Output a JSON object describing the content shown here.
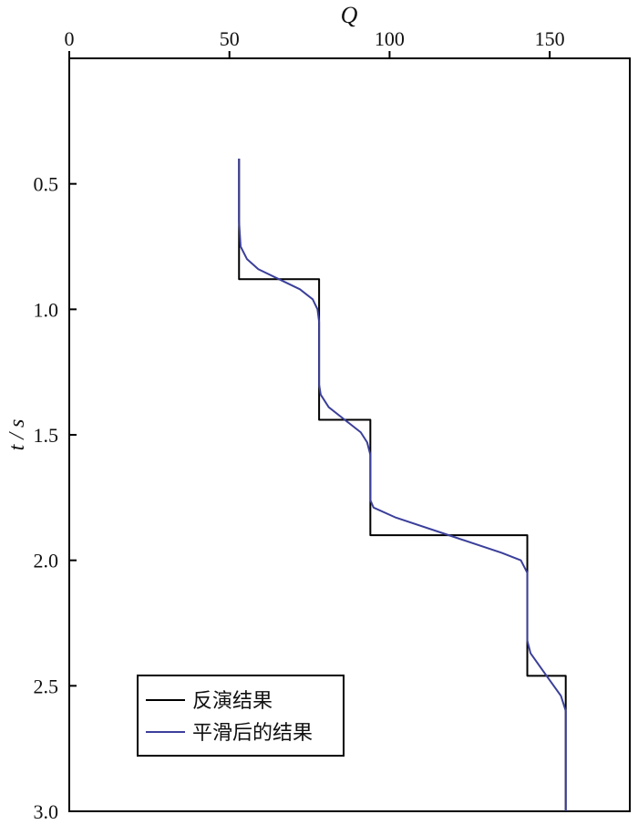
{
  "chart_data": {
    "type": "line",
    "xlabel": "Q",
    "ylabel": "t / s",
    "x_axis_position": "top",
    "y_axis_inverted": true,
    "xlim": [
      0,
      175
    ],
    "ylim": [
      0.0,
      3.0
    ],
    "x_ticks": [
      "0",
      "50",
      "100",
      "150"
    ],
    "y_ticks": [
      "0.5",
      "1.0",
      "1.5",
      "2.0",
      "2.5",
      "3.0"
    ],
    "grid": false,
    "legend_position": "bottom-left",
    "series": [
      {
        "name": "反演结果",
        "color": "#000000",
        "points": [
          [
            53,
            0.4
          ],
          [
            53,
            0.88
          ],
          [
            78,
            0.88
          ],
          [
            78,
            1.44
          ],
          [
            94,
            1.44
          ],
          [
            94,
            1.9
          ],
          [
            143,
            1.9
          ],
          [
            143,
            2.46
          ],
          [
            155,
            2.46
          ],
          [
            155,
            3.0
          ]
        ]
      },
      {
        "name": "平滑后的结果",
        "color": "#3b3f9a",
        "points": [
          [
            53,
            0.4
          ],
          [
            53,
            0.65
          ],
          [
            53.5,
            0.75
          ],
          [
            55.5,
            0.8
          ],
          [
            59,
            0.84
          ],
          [
            65.5,
            0.88
          ],
          [
            72,
            0.92
          ],
          [
            76,
            0.96
          ],
          [
            77.5,
            1.0
          ],
          [
            78,
            1.05
          ],
          [
            78,
            1.3
          ],
          [
            78.5,
            1.34
          ],
          [
            81,
            1.39
          ],
          [
            86,
            1.44
          ],
          [
            91,
            1.49
          ],
          [
            93,
            1.53
          ],
          [
            94,
            1.58
          ],
          [
            94,
            1.76
          ],
          [
            95,
            1.79
          ],
          [
            102,
            1.83
          ],
          [
            118.5,
            1.9
          ],
          [
            135,
            1.97
          ],
          [
            141,
            2.0
          ],
          [
            143,
            2.05
          ],
          [
            143,
            2.32
          ],
          [
            144,
            2.37
          ],
          [
            149,
            2.46
          ],
          [
            153.5,
            2.54
          ],
          [
            155,
            2.6
          ],
          [
            155,
            3.0
          ]
        ]
      }
    ]
  }
}
